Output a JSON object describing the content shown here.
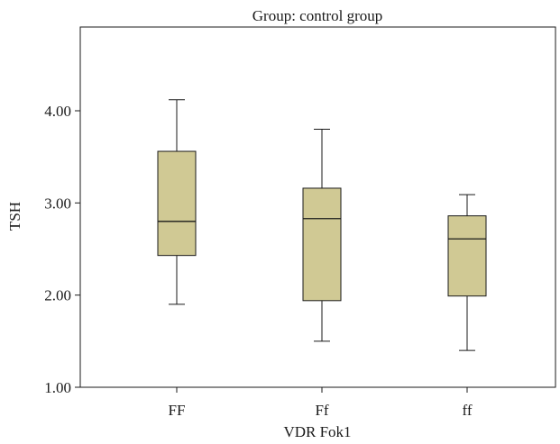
{
  "chart_data": {
    "type": "box",
    "title": "Group: control group",
    "xlabel": "VDR Fok1",
    "ylabel": "TSH",
    "ylim": [
      1.0,
      4.7
    ],
    "yticks": [
      "1.00",
      "2.00",
      "3.00",
      "4.00"
    ],
    "categories": [
      "FF",
      "Ff",
      "ff"
    ],
    "boxes": [
      {
        "category": "FF",
        "min": 1.9,
        "q1": 2.43,
        "median": 2.8,
        "q3": 3.56,
        "max": 4.12
      },
      {
        "category": "Ff",
        "min": 1.5,
        "q1": 1.94,
        "median": 2.83,
        "q3": 3.16,
        "max": 3.8
      },
      {
        "category": "ff",
        "min": 1.4,
        "q1": 1.99,
        "median": 2.61,
        "q3": 2.86,
        "max": 3.09
      }
    ],
    "box_color": "#d0c994",
    "line_color": "#1a1a1a",
    "grid": false
  }
}
